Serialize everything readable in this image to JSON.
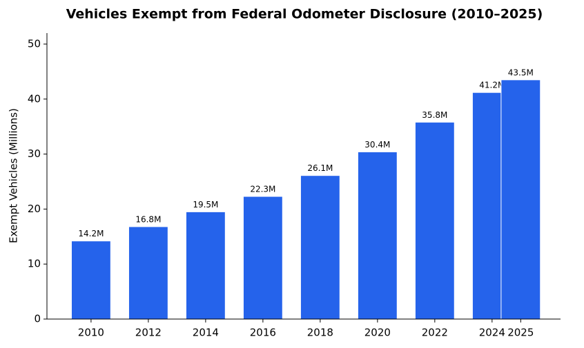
{
  "chart_data": {
    "type": "bar",
    "title": "Vehicles Exempt from Federal Odometer Disclosure (2010–2025)",
    "y_label": "Exempt Vehicles (Millions)",
    "x": [
      2010,
      2012,
      2014,
      2016,
      2018,
      2020,
      2022,
      2024,
      2025
    ],
    "values": [
      14.2,
      16.8,
      19.5,
      22.3,
      26.1,
      30.4,
      35.8,
      41.2,
      43.5
    ],
    "value_labels": [
      "14.2M",
      "16.8M",
      "19.5M",
      "22.3M",
      "26.1M",
      "30.4M",
      "35.8M",
      "41.2M",
      "43.5M"
    ],
    "color": "#2563eb",
    "xlim": [
      2008.46,
      2026.39
    ],
    "xticks": [
      2010,
      2012,
      2014,
      2016,
      2018,
      2020,
      2022,
      2024,
      2025
    ],
    "ylim": [
      0,
      52
    ],
    "yticks": [
      0,
      10,
      20,
      30,
      40,
      50
    ],
    "grid": false
  }
}
